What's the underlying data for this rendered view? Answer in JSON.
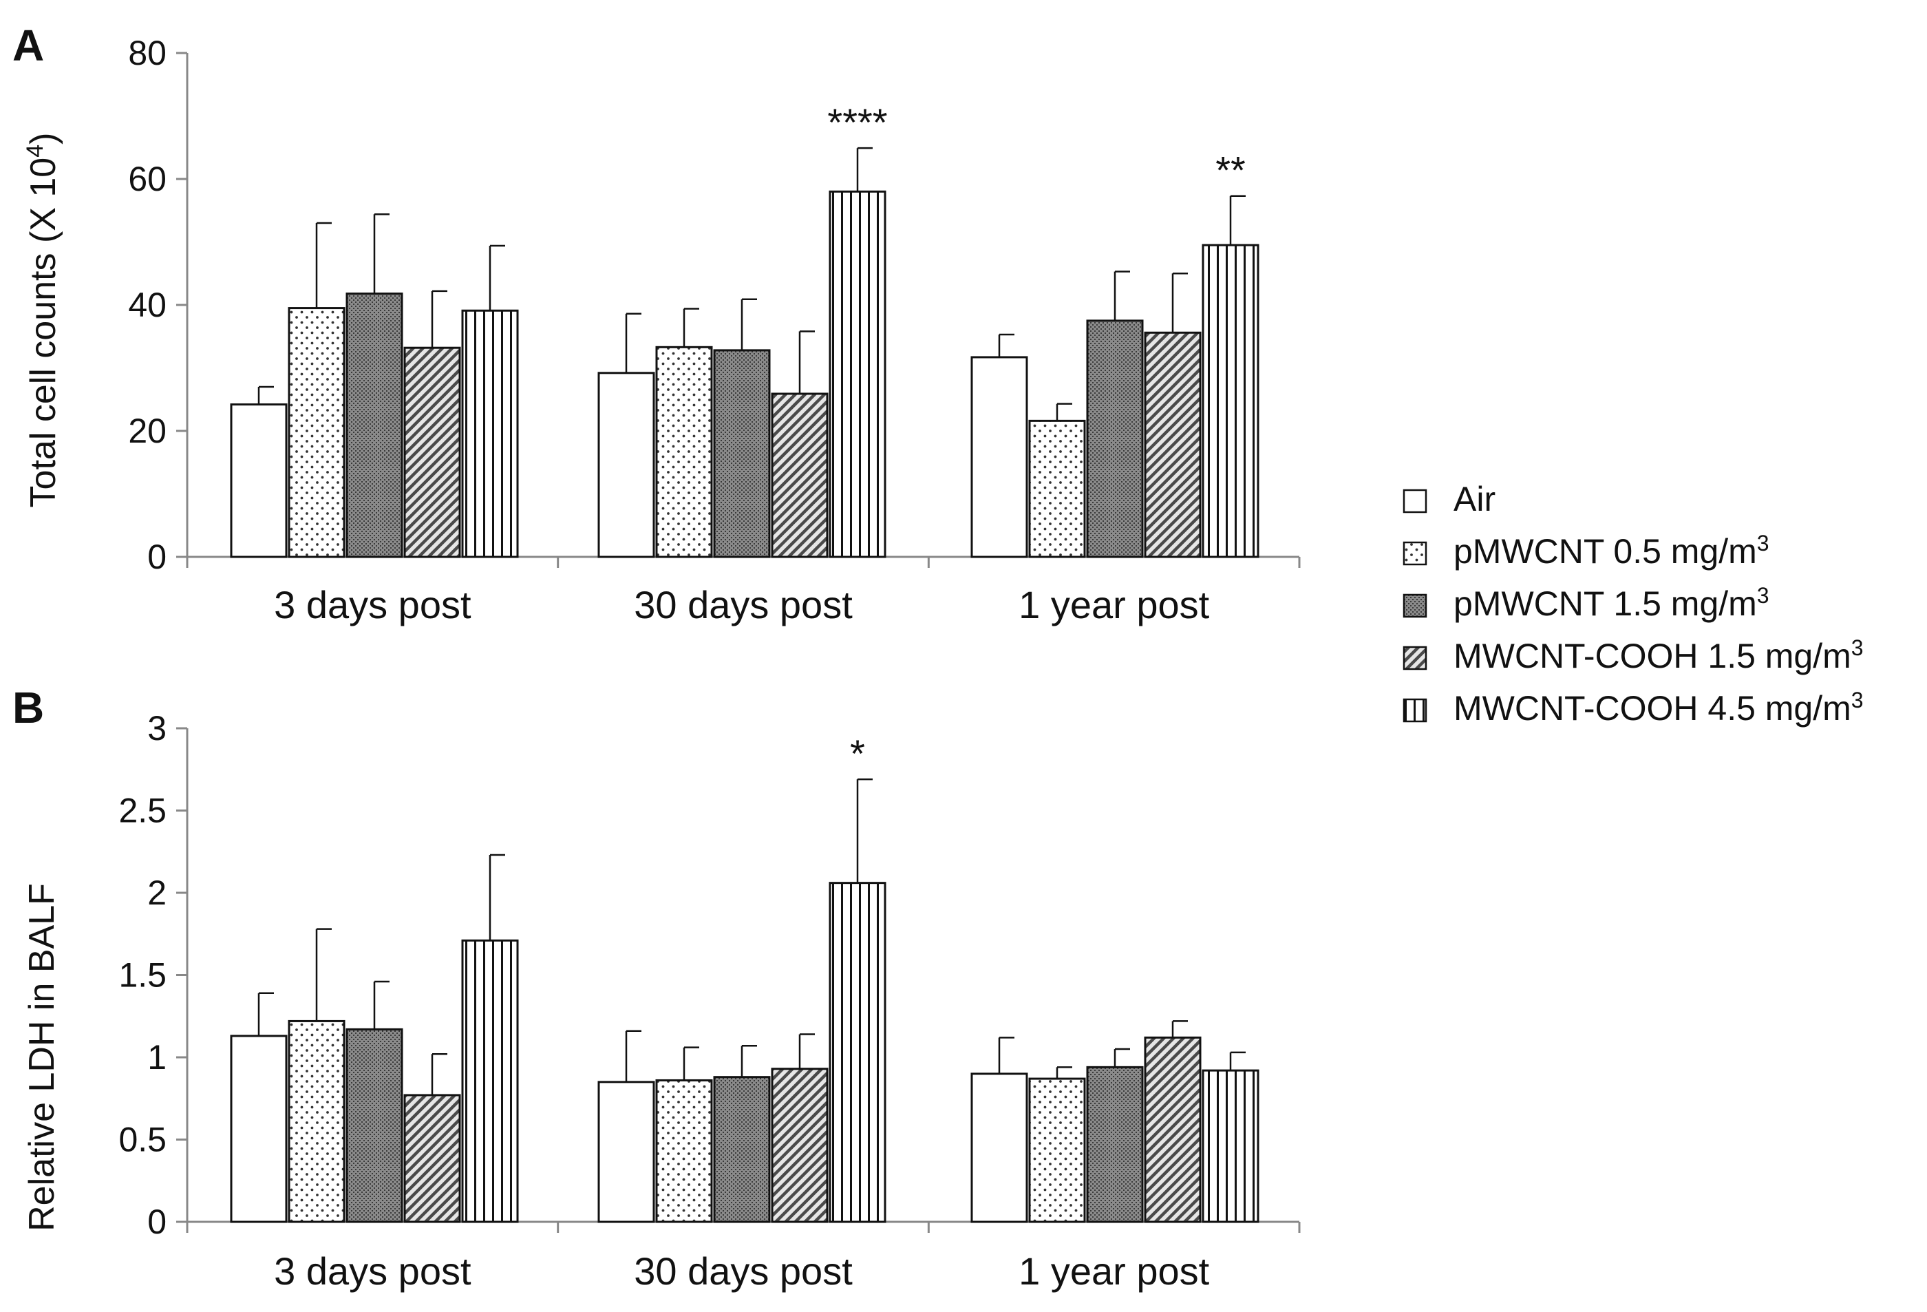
{
  "chart_data": [
    {
      "type": "bar",
      "panel": "A",
      "title": "",
      "xlabel": "",
      "ylabel": "Total cell counts (X 10",
      "ylabel_sup": "4",
      "ylabel_close": ")",
      "ylim": [
        0,
        80
      ],
      "yticks": [
        "0",
        "20",
        "40",
        "60",
        "80"
      ],
      "categories": [
        "3 days post",
        "30 days post",
        "1 year post"
      ],
      "series": [
        {
          "name": "Air",
          "values": [
            24.2,
            29.2,
            31.7
          ],
          "errors": [
            2.8,
            9.4,
            3.6
          ],
          "stars": [
            "",
            "",
            ""
          ]
        },
        {
          "name": "pMWCNT 0.5 mg/m3",
          "values": [
            39.5,
            33.3,
            21.6
          ],
          "errors": [
            13.5,
            6.1,
            2.7
          ],
          "stars": [
            "",
            "",
            ""
          ]
        },
        {
          "name": "pMWCNT 1.5 mg/m3",
          "values": [
            41.8,
            32.8,
            37.5
          ],
          "errors": [
            12.6,
            8.1,
            7.8
          ],
          "stars": [
            "",
            "",
            ""
          ]
        },
        {
          "name": "MWCNT-COOH 1.5 mg/m3",
          "values": [
            33.2,
            25.9,
            35.6
          ],
          "errors": [
            9.0,
            9.9,
            9.4
          ],
          "stars": [
            "",
            "",
            ""
          ]
        },
        {
          "name": "MWCNT-COOH 4.5 mg/m3",
          "values": [
            39.1,
            58.0,
            49.5
          ],
          "errors": [
            10.3,
            6.9,
            7.8
          ],
          "stars": [
            "",
            "****",
            "**"
          ]
        }
      ]
    },
    {
      "type": "bar",
      "panel": "B",
      "title": "",
      "xlabel": "",
      "ylabel": "Relative LDH in BALF",
      "ylim": [
        0,
        3
      ],
      "yticks": [
        "0",
        "0.5",
        "1",
        "1.5",
        "2",
        "2.5",
        "3"
      ],
      "categories": [
        "3 days post",
        "30 days post",
        "1 year post"
      ],
      "series": [
        {
          "name": "Air",
          "values": [
            1.13,
            0.85,
            0.9
          ],
          "errors": [
            0.26,
            0.31,
            0.22
          ],
          "stars": [
            "",
            "",
            ""
          ]
        },
        {
          "name": "pMWCNT 0.5 mg/m3",
          "values": [
            1.22,
            0.86,
            0.87
          ],
          "errors": [
            0.56,
            0.2,
            0.07
          ],
          "stars": [
            "",
            "",
            ""
          ]
        },
        {
          "name": "pMWCNT 1.5 mg/m3",
          "values": [
            1.17,
            0.88,
            0.94
          ],
          "errors": [
            0.29,
            0.19,
            0.11
          ],
          "stars": [
            "",
            "",
            ""
          ]
        },
        {
          "name": "MWCNT-COOH 1.5 mg/m3",
          "values": [
            0.77,
            0.93,
            1.12
          ],
          "errors": [
            0.25,
            0.21,
            0.1
          ],
          "stars": [
            "",
            "",
            ""
          ]
        },
        {
          "name": "MWCNT-COOH 4.5 mg/m3",
          "values": [
            1.71,
            2.06,
            0.92
          ],
          "errors": [
            0.52,
            0.63,
            0.11
          ],
          "stars": [
            "",
            "*",
            ""
          ]
        }
      ]
    }
  ],
  "legend": {
    "items": [
      {
        "label": "Air",
        "sup": ""
      },
      {
        "label": "pMWCNT 0.5 mg/m",
        "sup": "3"
      },
      {
        "label": "pMWCNT 1.5 mg/m",
        "sup": "3"
      },
      {
        "label": "MWCNT-COOH 1.5 mg/m",
        "sup": "3"
      },
      {
        "label": "MWCNT-COOH 4.5 mg/m",
        "sup": "3"
      }
    ]
  },
  "colors": {
    "axis": "#888888",
    "bar_stroke": "#111111",
    "fill_air": "#ffffff",
    "fill_dense": "#8a8a8a"
  }
}
